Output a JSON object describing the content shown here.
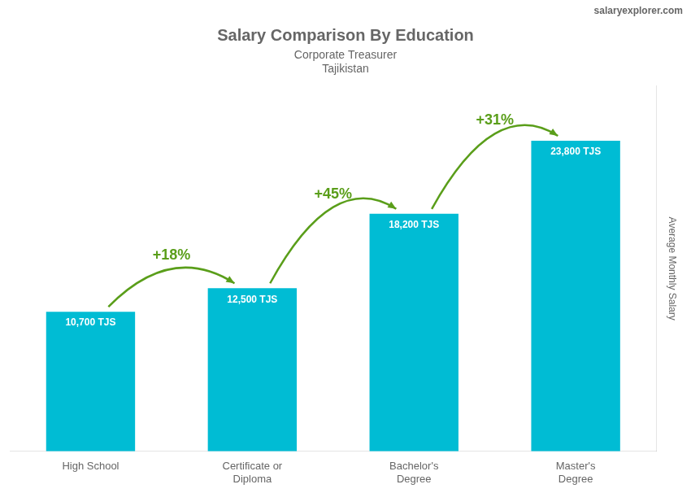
{
  "chart_data": {
    "type": "bar",
    "title": "Salary Comparison By Education",
    "subtitle": "Corporate Treasurer",
    "country": "Tajikistan",
    "watermark": "salaryexplorer.com",
    "ylabel": "Average Monthly Salary",
    "categories": [
      "High School",
      "Certificate or\nDiploma",
      "Bachelor's\nDegree",
      "Master's\nDegree"
    ],
    "values": [
      10700,
      12500,
      18200,
      23800
    ],
    "value_labels": [
      "10,700 TJS",
      "12,500 TJS",
      "18,200 TJS",
      "23,800 TJS"
    ],
    "change_labels": [
      "+18%",
      "+45%",
      "+31%"
    ],
    "color": "#00bcd4",
    "ylim": [
      0,
      28000
    ],
    "grid": false,
    "legend": false,
    "data_labels": true,
    "tick_labels": "x"
  }
}
